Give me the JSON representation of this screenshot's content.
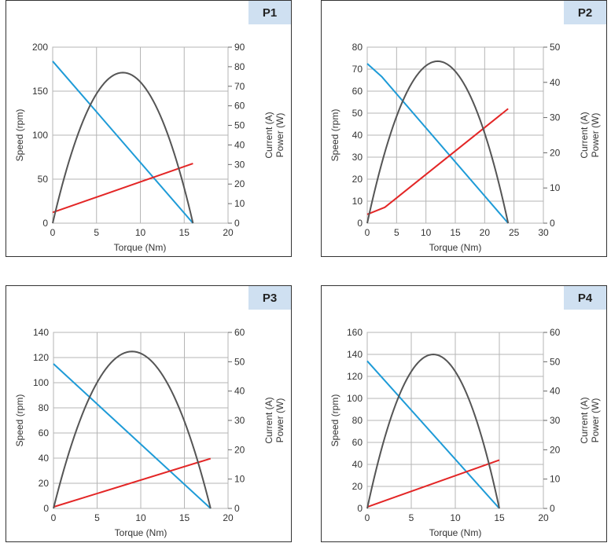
{
  "colors": {
    "speed": "#1e9bd7",
    "current": "#e32626",
    "power": "#555555",
    "badge_bg": "#cfe0f1",
    "grid": "#b5b5b5"
  },
  "chart_data": [
    {
      "type": "line",
      "badge": "P1",
      "xlabel": "Torque (Nm)",
      "ylabel_left": "Speed (rpm)",
      "ylabel_right_1": "Current (A)",
      "ylabel_right_2": "Power (W)",
      "xlim": [
        0,
        20
      ],
      "xticks": [
        0,
        5,
        10,
        15,
        20
      ],
      "ylim_left": [
        0,
        200
      ],
      "yticks_left": [
        0,
        50,
        100,
        150,
        200
      ],
      "ylim_right": [
        0,
        90
      ],
      "yticks_right": [
        0,
        10,
        20,
        30,
        40,
        50,
        60,
        70,
        80,
        90
      ],
      "grid": true,
      "series": [
        {
          "key": "speed",
          "axis": "left",
          "shape": "line",
          "x": [
            0,
            16
          ],
          "y": [
            184,
            0
          ]
        },
        {
          "key": "current",
          "axis": "right",
          "shape": "line",
          "x": [
            0,
            16
          ],
          "y": [
            5.5,
            30.5
          ]
        },
        {
          "key": "power",
          "axis": "right",
          "shape": "parabola",
          "x": [
            0,
            8,
            16
          ],
          "y": [
            0,
            77,
            0
          ]
        }
      ]
    },
    {
      "type": "line",
      "badge": "P2",
      "xlabel": "Torque (Nm)",
      "ylabel_left": "Speed (rpm)",
      "ylabel_right_1": "Current (A)",
      "ylabel_right_2": "Power (W)",
      "xlim": [
        0,
        30
      ],
      "xticks": [
        0,
        5,
        10,
        15,
        20,
        25,
        30
      ],
      "ylim_left": [
        0,
        80
      ],
      "yticks_left": [
        0,
        10,
        20,
        30,
        40,
        50,
        60,
        70,
        80
      ],
      "ylim_right": [
        0,
        50
      ],
      "yticks_right": [
        0,
        10,
        20,
        30,
        40,
        50
      ],
      "grid": true,
      "series": [
        {
          "key": "speed",
          "axis": "left",
          "shape": "line",
          "x": [
            0,
            2.5,
            24
          ],
          "y": [
            72.5,
            66.5,
            0
          ]
        },
        {
          "key": "current",
          "axis": "right",
          "shape": "line",
          "x": [
            0,
            3,
            24
          ],
          "y": [
            2.5,
            4.5,
            32.5
          ]
        },
        {
          "key": "power",
          "axis": "right",
          "shape": "parabola",
          "x": [
            0,
            12,
            24
          ],
          "y": [
            0,
            46,
            0
          ]
        }
      ]
    },
    {
      "type": "line",
      "badge": "P3",
      "xlabel": "Torque (Nm)",
      "ylabel_left": "Speed (rpm)",
      "ylabel_right_1": "Current (A)",
      "ylabel_right_2": "Power (W)",
      "xlim": [
        0,
        20
      ],
      "xticks": [
        0,
        5,
        10,
        15,
        20
      ],
      "ylim_left": [
        0,
        140
      ],
      "yticks_left": [
        0,
        20,
        40,
        60,
        80,
        100,
        120,
        140
      ],
      "ylim_right": [
        0,
        60
      ],
      "yticks_right": [
        0,
        10,
        20,
        30,
        40,
        50,
        60
      ],
      "grid": true,
      "series": [
        {
          "key": "speed",
          "axis": "left",
          "shape": "line",
          "x": [
            0,
            18
          ],
          "y": [
            115,
            0
          ]
        },
        {
          "key": "current",
          "axis": "right",
          "shape": "line",
          "x": [
            0,
            18
          ],
          "y": [
            0.5,
            17
          ]
        },
        {
          "key": "power",
          "axis": "right",
          "shape": "parabola",
          "x": [
            0,
            9,
            18
          ],
          "y": [
            0,
            53.5,
            0
          ]
        }
      ]
    },
    {
      "type": "line",
      "badge": "P4",
      "xlabel": "Torque (Nm)",
      "ylabel_left": "Speed (rpm)",
      "ylabel_right_1": "Current (A)",
      "ylabel_right_2": "Power (W)",
      "xlim": [
        0,
        20
      ],
      "xticks": [
        0,
        5,
        10,
        15,
        20
      ],
      "ylim_left": [
        0,
        160
      ],
      "yticks_left": [
        0,
        20,
        40,
        60,
        80,
        100,
        120,
        140,
        160
      ],
      "ylim_right": [
        0,
        60
      ],
      "yticks_right": [
        0,
        10,
        20,
        30,
        40,
        50,
        60
      ],
      "grid": true,
      "series": [
        {
          "key": "speed",
          "axis": "left",
          "shape": "line",
          "x": [
            0,
            15
          ],
          "y": [
            134,
            0
          ]
        },
        {
          "key": "current",
          "axis": "right",
          "shape": "line",
          "x": [
            0,
            15
          ],
          "y": [
            0.5,
            16.5
          ]
        },
        {
          "key": "power",
          "axis": "right",
          "shape": "parabola",
          "x": [
            0,
            7.5,
            15
          ],
          "y": [
            0,
            52.5,
            0
          ]
        }
      ]
    }
  ]
}
